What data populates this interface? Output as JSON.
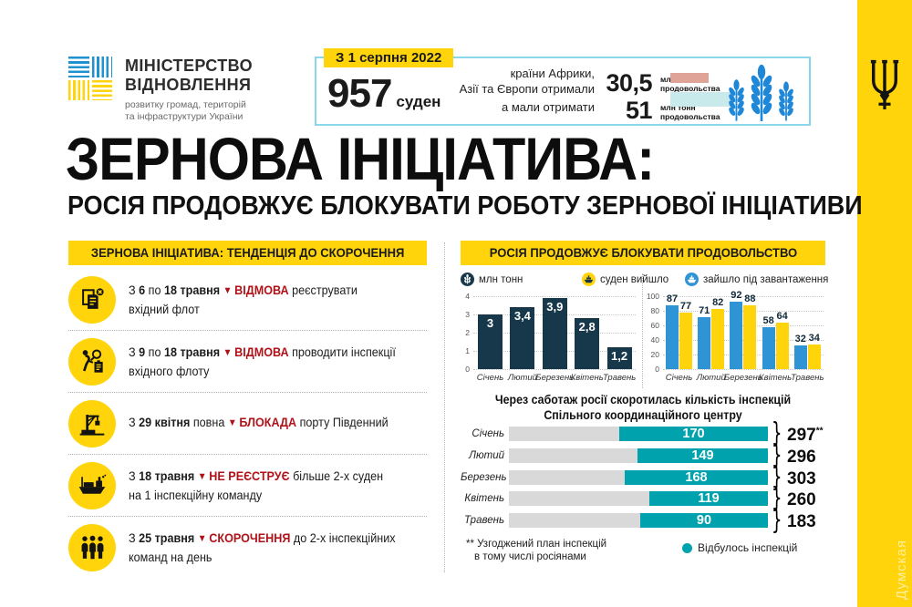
{
  "colors": {
    "yellow": "#ffd40a",
    "navy": "#17374a",
    "blue": "#2e94d6",
    "teal": "#00a3ad",
    "red": "#b01218",
    "track_gray": "#d9d9d9",
    "box_border": "#8ad6ea",
    "salmon": "#dfa497",
    "light_cyan": "#c9eaea",
    "wheat_blue": "#1e87d8"
  },
  "ministry": {
    "name_line1": "МІНІСТЕРСТВО",
    "name_line2": "ВІДНОВЛЕННЯ",
    "tagline_line1": "розвитку громад, територій",
    "tagline_line2": "та інфраструктури України"
  },
  "stat_box": {
    "date_badge": "З 1 серпня 2022",
    "ships_value": "957",
    "ships_unit": "суден",
    "received_line1": "країни Африки,",
    "received_line2": "Азії та Європи отримали",
    "expected_label": "а мали отримати",
    "received_value": "30,5",
    "expected_value": "51",
    "unit_line1": "млн тонн",
    "unit_line2": "продовольства"
  },
  "title": "ЗЕРНОВА ІНІЦІАТИВА:",
  "subtitle": "РОСІЯ ПРОДОВЖУЄ БЛОКУВАТИ РОБОТУ ЗЕРНОВОЇ ІНІЦІАТИВИ",
  "left_panel": {
    "header": "ЗЕРНОВА ІНІЦІАТИВА: ТЕНДЕНЦІЯ ДО СКОРОЧЕННЯ",
    "items": [
      {
        "icon": "documents-rejected-icon",
        "segments": [
          [
            "З ",
            "n"
          ],
          [
            "6",
            "b"
          ],
          [
            " по ",
            "n"
          ],
          [
            "18 травня ",
            "b"
          ],
          [
            "▼ ",
            "a"
          ],
          [
            "ВІДМОВА",
            "k"
          ],
          [
            " реєструвати вхідний флот",
            "n"
          ]
        ]
      },
      {
        "icon": "inspection-icon",
        "segments": [
          [
            "З ",
            "n"
          ],
          [
            "9",
            "b"
          ],
          [
            " по ",
            "n"
          ],
          [
            "18 травня ",
            "b"
          ],
          [
            "▼ ",
            "a"
          ],
          [
            "ВІДМОВА",
            "k"
          ],
          [
            " проводити інспекції вхідного флоту",
            "n"
          ]
        ]
      },
      {
        "icon": "port-crane-icon",
        "segments": [
          [
            "З ",
            "n"
          ],
          [
            "29 квітня",
            "b"
          ],
          [
            " повна ",
            "n"
          ],
          [
            "▼ ",
            "a"
          ],
          [
            "БЛОКАДА",
            "k"
          ],
          [
            " порту Південний",
            "n"
          ]
        ]
      },
      {
        "icon": "ship-icon",
        "segments": [
          [
            "З ",
            "n"
          ],
          [
            "18 травня ",
            "b"
          ],
          [
            "▼ ",
            "a"
          ],
          [
            "НЕ РЕЄСТРУЄ",
            "k"
          ],
          [
            " більше 2-х суден на 1 інспекційну команду",
            "n"
          ]
        ]
      },
      {
        "icon": "inspection-teams-icon",
        "segments": [
          [
            "З ",
            "n"
          ],
          [
            "25 травня ",
            "b"
          ],
          [
            "▼ ",
            "a"
          ],
          [
            "СКОРОЧЕННЯ",
            "k"
          ],
          [
            " до 2-х інспекційних команд на день",
            "n"
          ]
        ]
      }
    ]
  },
  "right_panel": {
    "header": "РОСІЯ ПРОДОВЖУЄ БЛОКУВАТИ ПРОДОВОЛЬСТВО",
    "legend": [
      {
        "label": "млн тонн",
        "color": "#17374a",
        "icon": "wheat-icon"
      },
      {
        "label": "суден вийшло",
        "color": "#ffd40a",
        "icon": "ship-out-icon"
      },
      {
        "label": "зайшло під завантаження",
        "color": "#2e94d6",
        "icon": "ship-in-icon"
      }
    ],
    "footnote_line1": "** Узгоджений план інспекцій",
    "footnote_line2": "в тому числі росіянами",
    "hbar_legend": "Відбулось інспекцій"
  },
  "chart_data": [
    {
      "type": "bar",
      "name": "grain-tonnage-by-month",
      "legend": "млн тонн",
      "categories": [
        "Січень",
        "Лютий",
        "Березень",
        "Квітень",
        "Травень"
      ],
      "values": [
        3,
        3.4,
        3.9,
        2.8,
        1.2
      ],
      "value_labels": [
        "3",
        "3,4",
        "3,9",
        "2,8",
        "1,2"
      ],
      "ylim": [
        0,
        4
      ],
      "yticks": [
        0,
        1,
        2,
        3,
        4
      ],
      "bar_color": "#17374a",
      "grid": true
    },
    {
      "type": "bar",
      "name": "ships-by-month",
      "categories": [
        "Січень",
        "Лютий",
        "Березень",
        "Квітень",
        "Травень"
      ],
      "series": [
        {
          "name": "зайшло під завантаження",
          "color": "#2e94d6",
          "values": [
            87,
            71,
            92,
            58,
            32
          ]
        },
        {
          "name": "суден вийшло",
          "color": "#ffd40a",
          "values": [
            77,
            82,
            88,
            64,
            34
          ]
        }
      ],
      "ylim": [
        0,
        100
      ],
      "yticks": [
        0,
        20,
        40,
        60,
        80,
        100
      ],
      "grid": true
    },
    {
      "type": "hbar",
      "name": "inspections-by-month",
      "title": "Через саботаж росії скоротилась кількість інспекцій Спільного координаційного центру",
      "categories": [
        "Січень",
        "Лютий",
        "Березень",
        "Квітень",
        "Травень"
      ],
      "done_values": [
        170,
        149,
        168,
        119,
        90
      ],
      "plan_values": [
        297,
        296,
        303,
        260,
        183
      ],
      "plan_labels": [
        "297**",
        "296",
        "303",
        "260",
        "183"
      ],
      "done_color": "#00a3ad",
      "track_color": "#d9d9d9",
      "legend": "Відбулось інспекцій"
    }
  ],
  "watermark": "Думская"
}
